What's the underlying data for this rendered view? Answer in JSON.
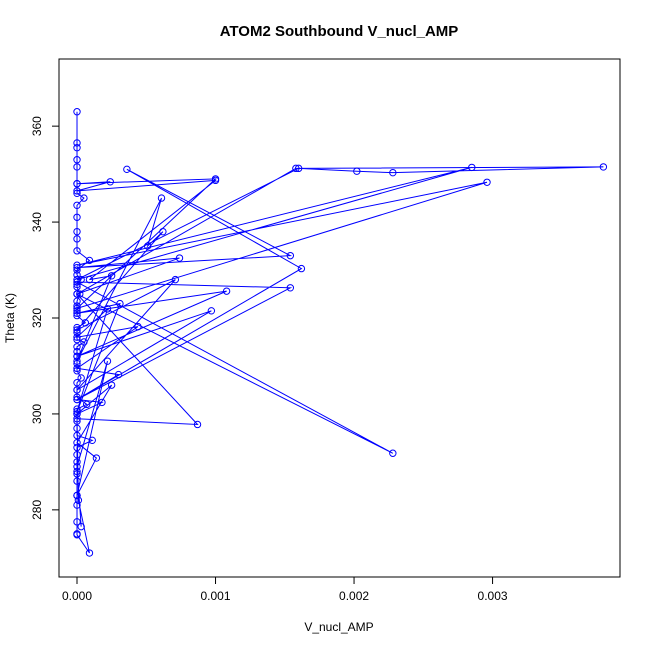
{
  "chart_data": {
    "type": "line",
    "title": "ATOM2 Southbound V_nucl_AMP",
    "xlabel": "V_nucl_AMP",
    "ylabel": "Theta (K)",
    "xlim": [
      -0.00013,
      0.00392
    ],
    "ylim": [
      266,
      374
    ],
    "xticks": [
      0,
      0.001,
      0.002,
      0.003
    ],
    "xtick_labels": [
      "0.000",
      "0.001",
      "0.002",
      "0.003"
    ],
    "yticks": [
      280,
      300,
      320,
      340,
      360
    ],
    "ytick_labels": [
      "280",
      "300",
      "320",
      "340",
      "360"
    ],
    "grid": false,
    "legend": "none",
    "series": [
      {
        "color": "#0000ff",
        "marker": "open-circle",
        "points": [
          [
            0.0,
            363.0
          ],
          [
            0.0,
            356.5
          ],
          [
            0.0,
            355.5
          ],
          [
            0.0,
            353.0
          ],
          [
            0.0,
            351.5
          ],
          [
            0.0,
            348.0
          ],
          [
            0.0,
            346.0
          ],
          [
            5e-05,
            345.0
          ],
          [
            0.0,
            343.5
          ],
          [
            0.0,
            341.0
          ],
          [
            0.0,
            338.0
          ],
          [
            0.0,
            336.5
          ],
          [
            0.0,
            334.0
          ],
          [
            9e-05,
            332.0
          ],
          [
            0.0,
            330.0
          ],
          [
            0.0,
            329.0
          ],
          [
            3e-05,
            328.0
          ],
          [
            0.0,
            327.0
          ],
          [
            0.0,
            326.5
          ],
          [
            2e-05,
            325.0
          ],
          [
            0.0,
            323.5
          ],
          [
            0.0,
            322.5
          ],
          [
            0.0,
            321.5
          ],
          [
            0.0,
            320.5
          ],
          [
            6e-05,
            319.0
          ],
          [
            0.0,
            318.0
          ],
          [
            0.0,
            317.0
          ],
          [
            0.0,
            315.5
          ],
          [
            5e-05,
            315.0
          ],
          [
            0.0,
            314.0
          ],
          [
            0.0,
            313.0
          ],
          [
            0.0,
            312.0
          ],
          [
            0.0,
            310.5
          ],
          [
            0.0,
            309.0
          ],
          [
            3e-05,
            307.5
          ],
          [
            0.0,
            306.5
          ],
          [
            0.0,
            305.0
          ],
          [
            0.0,
            303.5
          ],
          [
            7e-05,
            302.0
          ],
          [
            0.0,
            301.0
          ],
          [
            0.0,
            300.0
          ],
          [
            0.0,
            298.5
          ],
          [
            0.0,
            297.0
          ],
          [
            0.0,
            295.5
          ],
          [
            0.00011,
            294.5
          ],
          [
            0.0,
            293.0
          ],
          [
            0.0,
            291.5
          ],
          [
            0.0,
            290.0
          ],
          [
            0.0,
            288.0
          ],
          [
            0.0,
            287.5
          ],
          [
            0.0,
            286.0
          ],
          [
            0.0,
            283.0
          ],
          [
            0.0,
            281.0
          ],
          [
            0.0,
            277.5
          ],
          [
            0.0,
            275.0
          ],
          [
            0.0,
            274.8
          ],
          [
            9e-05,
            271.0
          ],
          [
            1e-05,
            282.0
          ],
          [
            0.0,
            299.0
          ],
          [
            0.00087,
            297.8
          ],
          [
            0.0,
            325.0
          ],
          [
            0.00228,
            291.8
          ],
          [
            0.0,
            327.5
          ],
          [
            0.00154,
            326.3
          ],
          [
            0.0,
            303.0
          ],
          [
            0.00162,
            330.3
          ],
          [
            0.00036,
            351.0
          ],
          [
            0.00154,
            333.0
          ],
          [
            0.0,
            330.5
          ],
          [
            0.00074,
            332.5
          ],
          [
            0.0,
            325.0
          ],
          [
            0.00158,
            351.2
          ],
          [
            0.0038,
            351.5
          ],
          [
            0.00228,
            350.3
          ],
          [
            0.00202,
            350.6
          ],
          [
            0.0016,
            351.2
          ],
          [
            0.0,
            328.0
          ],
          [
            0.00285,
            351.4
          ],
          [
            0.0,
            331.0
          ],
          [
            0.00296,
            348.3
          ],
          [
            0.0,
            322.0
          ],
          [
            0.001,
            349.0
          ],
          [
            0.0,
            348.0
          ],
          [
            0.00024,
            348.4
          ],
          [
            0.0,
            346.5
          ],
          [
            0.001,
            348.7
          ],
          [
            9e-05,
            328.0
          ],
          [
            0.00025,
            328.8
          ],
          [
            0.0,
            311.0
          ],
          [
            0.00061,
            345.0
          ],
          [
            0.00051,
            335.0
          ],
          [
            0.00062,
            338.0
          ],
          [
            0.0,
            317.5
          ],
          [
            0.00071,
            328.0
          ],
          [
            0.0,
            305.0
          ],
          [
            0.00097,
            321.5
          ],
          [
            0.0,
            312.0
          ],
          [
            0.00108,
            325.6
          ],
          [
            0.0,
            321.0
          ],
          [
            0.00031,
            323.0
          ],
          [
            0.0,
            300.5
          ],
          [
            0.00022,
            321.9
          ],
          [
            0.0,
            316.0
          ],
          [
            0.00044,
            318.2
          ],
          [
            0.0,
            309.5
          ],
          [
            0.0003,
            308.2
          ],
          [
            0.0,
            303.0
          ],
          [
            0.00018,
            302.4
          ],
          [
            0.0,
            300.0
          ],
          [
            0.00025,
            306.0
          ],
          [
            0.0,
            294.0
          ],
          [
            0.00014,
            290.8
          ],
          [
            0.0,
            283.0
          ],
          [
            0.00022,
            311.0
          ],
          [
            0.0,
            289.0
          ],
          [
            3e-05,
            276.5
          ]
        ]
      }
    ]
  }
}
